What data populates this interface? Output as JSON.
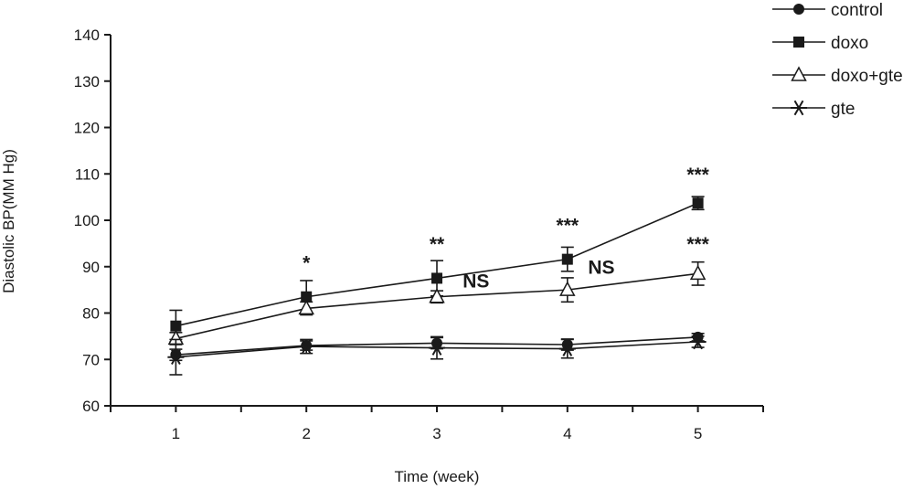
{
  "chart_data": {
    "type": "line",
    "title": "",
    "xlabel": "Time (week)",
    "ylabel": "Diastolic BP(MM Hg)",
    "x": [
      1,
      2,
      3,
      4,
      5
    ],
    "xlim": [
      0.5,
      5.5
    ],
    "ylim": [
      60,
      140
    ],
    "yticks": [
      60,
      70,
      80,
      90,
      100,
      110,
      120,
      130,
      140
    ],
    "xticks": [
      1,
      2,
      3,
      4,
      5
    ],
    "grid": false,
    "legend_position": "top-right",
    "series": [
      {
        "name": "control",
        "marker": "circle",
        "values": [
          71.0,
          73.0,
          73.5,
          73.2,
          74.8
        ],
        "errors": [
          1.2,
          1.0,
          1.2,
          1.2,
          0.8
        ]
      },
      {
        "name": "doxo",
        "marker": "square",
        "values": [
          77.2,
          83.5,
          87.5,
          91.6,
          103.7
        ],
        "errors": [
          3.4,
          3.5,
          3.8,
          2.6,
          1.4
        ]
      },
      {
        "name": "doxo+gte",
        "marker": "triangle",
        "values": [
          74.5,
          81.0,
          83.5,
          85.0,
          88.5
        ],
        "errors": [
          1.3,
          1.4,
          1.3,
          2.6,
          2.5
        ]
      },
      {
        "name": "gte",
        "marker": "star",
        "values": [
          70.5,
          72.8,
          72.5,
          72.3,
          73.8
        ],
        "errors": [
          3.8,
          1.5,
          2.4,
          2.0,
          1.2
        ]
      }
    ],
    "annotations": [
      {
        "text": "*",
        "x": 2,
        "y": 89.5
      },
      {
        "text": "**",
        "x": 3,
        "y": 93.5
      },
      {
        "text": "***",
        "x": 4,
        "y": 97.5
      },
      {
        "text": "***",
        "x": 5,
        "y": 108.5
      },
      {
        "text": "***",
        "x": 5,
        "y": 93.5
      },
      {
        "text": "NS",
        "x": 3.3,
        "y": 85.5
      },
      {
        "text": "NS",
        "x": 4.26,
        "y": 88.5
      }
    ]
  }
}
